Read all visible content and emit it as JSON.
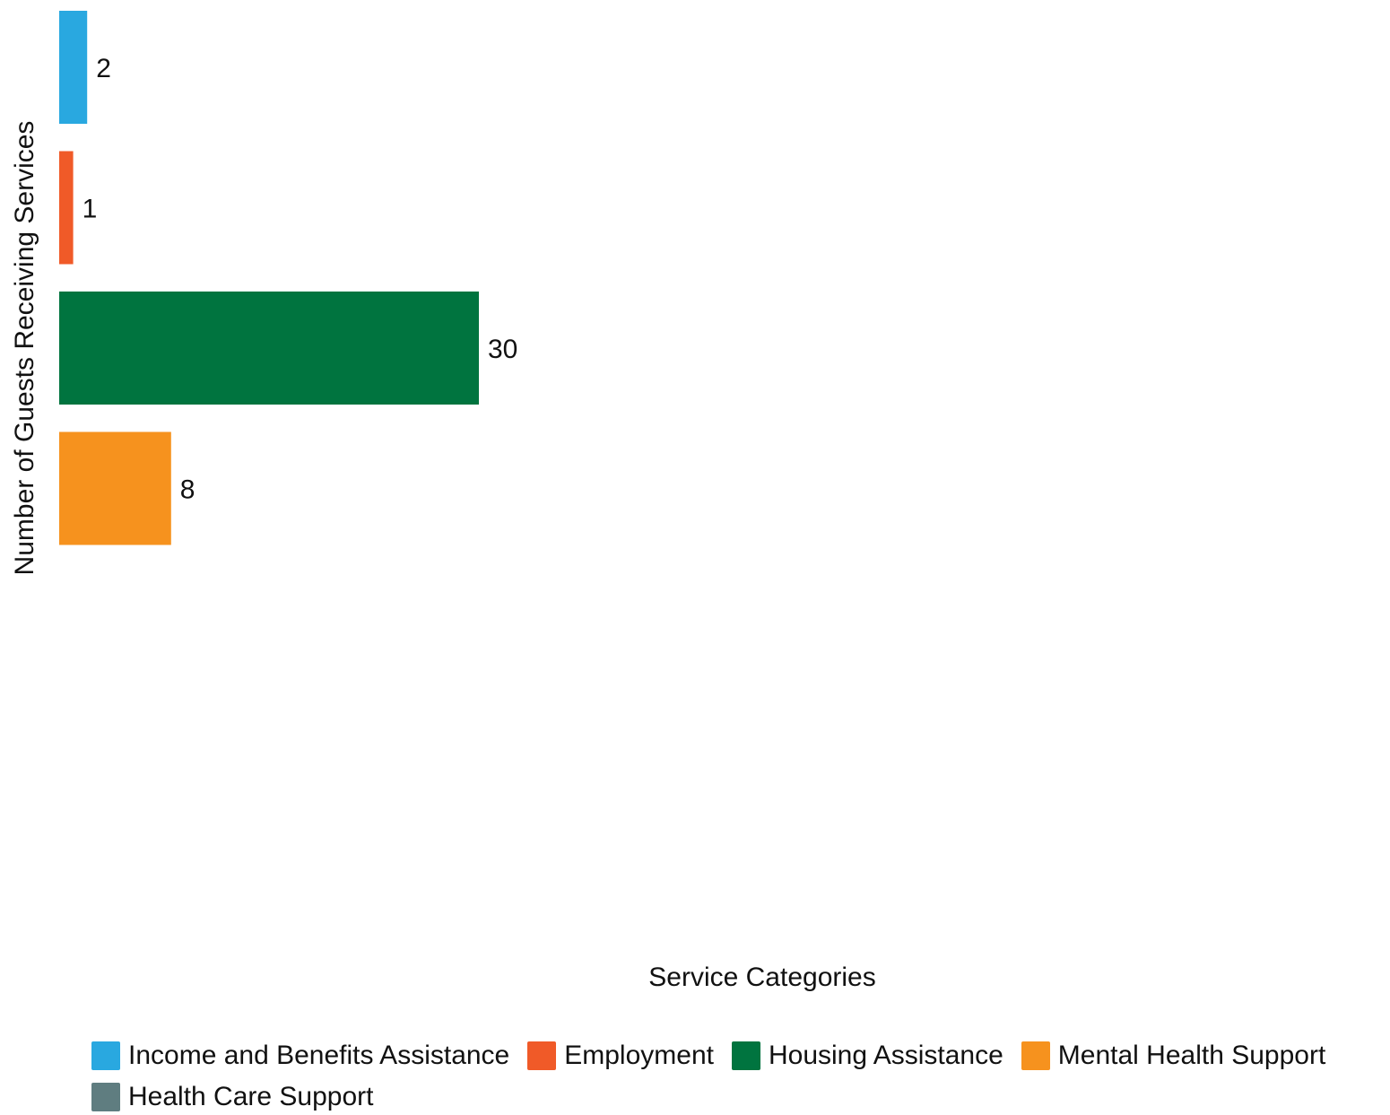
{
  "chart_data": {
    "type": "bar",
    "orientation": "horizontal",
    "categories": [
      "Income and Benefits Assistance",
      "Employment",
      "Housing Assistance",
      "Mental Health Support",
      "Health Care Support"
    ],
    "values": [
      2,
      1,
      30,
      8,
      0
    ],
    "data_labels": [
      "2",
      "1",
      "30",
      "8",
      ""
    ],
    "colors": [
      "#29a8e0",
      "#f05a28",
      "#00743f",
      "#f6921e",
      "#5f7d80"
    ],
    "xlabel": "Service Categories",
    "ylabel": "Number of Guests Receiving Services",
    "xlim": [
      0,
      30
    ],
    "grid": false,
    "legend_position": "bottom",
    "legend": [
      {
        "label": "Income and Benefits Assistance",
        "color": "#29a8e0"
      },
      {
        "label": "Employment",
        "color": "#f05a28"
      },
      {
        "label": "Housing Assistance",
        "color": "#00743f"
      },
      {
        "label": "Mental Health Support",
        "color": "#f6921e"
      },
      {
        "label": "Health Care Support",
        "color": "#5f7d80"
      }
    ]
  }
}
